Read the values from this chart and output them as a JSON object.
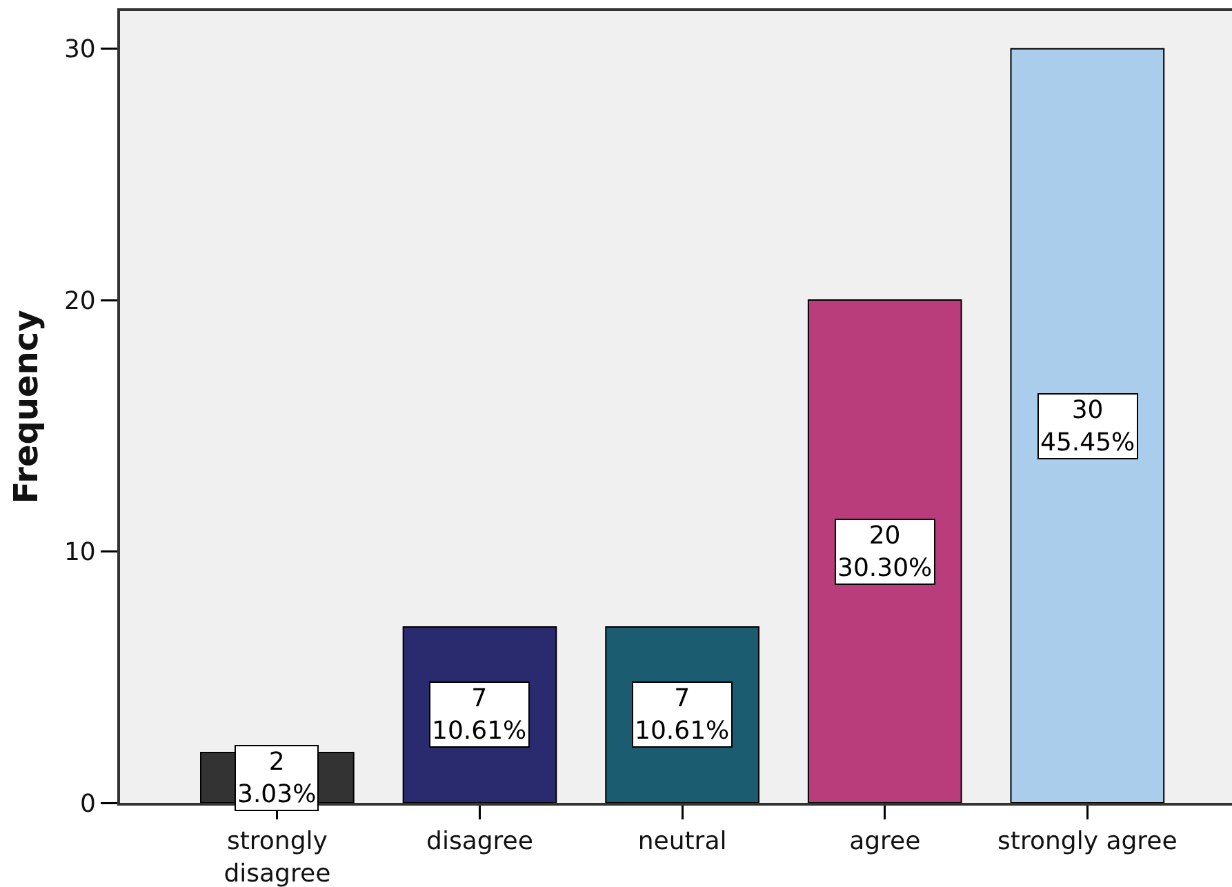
{
  "chart_data": {
    "type": "bar",
    "ylabel": "Frequency",
    "categories": [
      "strongly disagree",
      "disagree",
      "neutral",
      "agree",
      "strongly agree"
    ],
    "values": [
      2,
      7,
      7,
      20,
      30
    ],
    "colors": [
      "#333333",
      "#2a2a6f",
      "#1c5c70",
      "#b93d7b",
      "#abcdec"
    ],
    "value_labels": [
      "2\n3.03%",
      "7\n10.61%",
      "7\n10.61%",
      "20\n30.30%",
      "30\n45.45%"
    ],
    "ylim": [
      0,
      31.5
    ],
    "yticks": [
      0,
      10,
      20,
      30
    ]
  }
}
